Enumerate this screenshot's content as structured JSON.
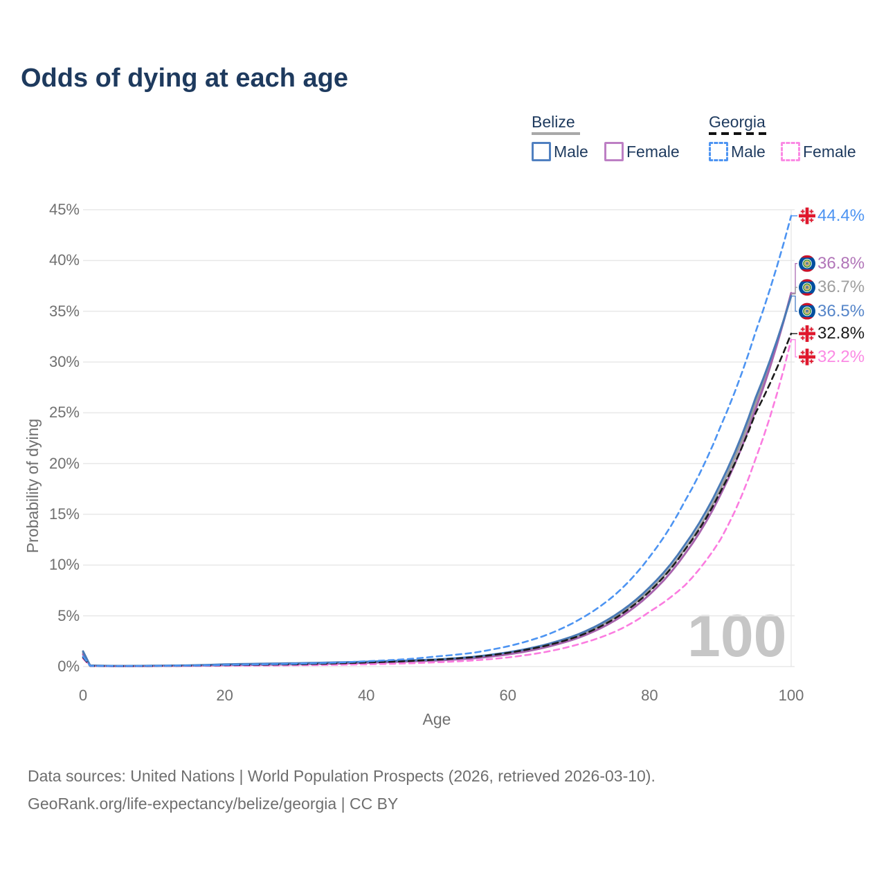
{
  "title": "Odds of dying at each age",
  "legend": {
    "groups": [
      {
        "country": "Belize",
        "style": "solid",
        "items": [
          {
            "label": "Male"
          },
          {
            "label": "Female"
          }
        ]
      },
      {
        "country": "Georgia",
        "style": "dashed",
        "items": [
          {
            "label": "Male"
          },
          {
            "label": "Female"
          }
        ]
      }
    ]
  },
  "footer": {
    "line1": "Data sources: United Nations | World Population Prospects (2026, retrieved 2026-03-10).",
    "line2": "GeoRank.org/life-expectancy/belize/georgia | CC BY"
  },
  "chart_data": {
    "type": "line",
    "title": "Odds of dying at each age",
    "xlabel": "Age",
    "ylabel": "Probability of dying",
    "xlim": [
      0,
      100
    ],
    "ylim": [
      0,
      45
    ],
    "x_ticks": [
      0,
      20,
      40,
      60,
      80,
      100
    ],
    "y_ticks": [
      0,
      5,
      10,
      15,
      20,
      25,
      30,
      35,
      40,
      45
    ],
    "grid": "horizontal",
    "legend_position": "top-right",
    "age_cursor": "100",
    "ages": [
      0,
      1,
      5,
      10,
      15,
      20,
      25,
      30,
      35,
      40,
      45,
      50,
      55,
      60,
      65,
      70,
      75,
      80,
      85,
      90,
      95,
      100
    ],
    "series": [
      {
        "name": "Belize",
        "country": "Belize",
        "sex": "Both",
        "color": "#9e9e9e",
        "dash": false,
        "width": 3,
        "values": [
          1.35,
          0.09,
          0.055,
          0.07,
          0.105,
          0.18,
          0.23,
          0.27,
          0.34,
          0.42,
          0.53,
          0.66,
          0.9,
          1.32,
          2.0,
          3.05,
          4.8,
          7.5,
          11.6,
          17.5,
          26.0,
          36.7
        ]
      },
      {
        "name": "Belize Female",
        "country": "Belize",
        "sex": "Female",
        "color": "#a763ad",
        "dash": false,
        "width": 3,
        "values": [
          1.2,
          0.08,
          0.05,
          0.06,
          0.09,
          0.14,
          0.18,
          0.22,
          0.28,
          0.37,
          0.48,
          0.6,
          0.8,
          1.2,
          1.85,
          2.85,
          4.5,
          7.1,
          11.1,
          16.9,
          25.4,
          36.8
        ]
      },
      {
        "name": "Belize Male",
        "country": "Belize",
        "sex": "Male",
        "color": "#4a7ab5",
        "dash": false,
        "width": 3,
        "values": [
          1.5,
          0.1,
          0.06,
          0.08,
          0.12,
          0.22,
          0.28,
          0.33,
          0.4,
          0.48,
          0.58,
          0.7,
          0.95,
          1.4,
          2.1,
          3.2,
          5.0,
          7.8,
          12.0,
          18.0,
          26.5,
          36.5
        ]
      },
      {
        "name": "Georgia Female",
        "country": "Georgia",
        "sex": "Female",
        "color": "#fb7ce0",
        "dash": true,
        "width": 2.6,
        "values": [
          0.8,
          0.05,
          0.04,
          0.05,
          0.06,
          0.08,
          0.1,
          0.13,
          0.17,
          0.22,
          0.3,
          0.42,
          0.6,
          0.9,
          1.4,
          2.2,
          3.4,
          5.4,
          8.0,
          12.5,
          20.5,
          32.2
        ]
      },
      {
        "name": "Georgia",
        "country": "Georgia",
        "sex": "Both",
        "color": "#1c1c1c",
        "dash": true,
        "width": 2.6,
        "values": [
          0.9,
          0.06,
          0.045,
          0.06,
          0.09,
          0.14,
          0.18,
          0.22,
          0.3,
          0.4,
          0.52,
          0.68,
          0.92,
          1.35,
          2.0,
          3.0,
          4.7,
          7.4,
          11.5,
          17.2,
          25.0,
          32.8
        ]
      },
      {
        "name": "Georgia Male",
        "country": "Georgia",
        "sex": "Male",
        "color": "#4d94f2",
        "dash": true,
        "width": 2.6,
        "values": [
          1.0,
          0.07,
          0.05,
          0.07,
          0.1,
          0.17,
          0.22,
          0.28,
          0.38,
          0.52,
          0.7,
          1.0,
          1.35,
          2.0,
          3.0,
          4.6,
          7.0,
          10.8,
          16.3,
          23.6,
          33.0,
          44.4
        ]
      }
    ],
    "end_labels": [
      {
        "text": "44.4%",
        "series": "Georgia Male",
        "flag": "georgia",
        "color": "#4d94f2",
        "value": 44.4,
        "label_at": 44.4
      },
      {
        "text": "36.8%",
        "series": "Belize Female",
        "flag": "belize",
        "color": "#b175b8",
        "value": 36.8,
        "label_at": 39.7
      },
      {
        "text": "36.7%",
        "series": "Belize",
        "flag": "belize",
        "color": "#9e9e9e",
        "value": 36.7,
        "label_at": 37.35
      },
      {
        "text": "36.5%",
        "series": "Belize Male",
        "flag": "belize",
        "color": "#5585c9",
        "value": 36.5,
        "label_at": 35.0
      },
      {
        "text": "32.8%",
        "series": "Georgia",
        "flag": "georgia",
        "color": "#1a1a1a",
        "value": 32.8,
        "label_at": 32.8
      },
      {
        "text": "32.2%",
        "series": "Georgia Female",
        "flag": "georgia",
        "color": "#fb8ae4",
        "value": 32.2,
        "label_at": 30.5
      }
    ]
  }
}
